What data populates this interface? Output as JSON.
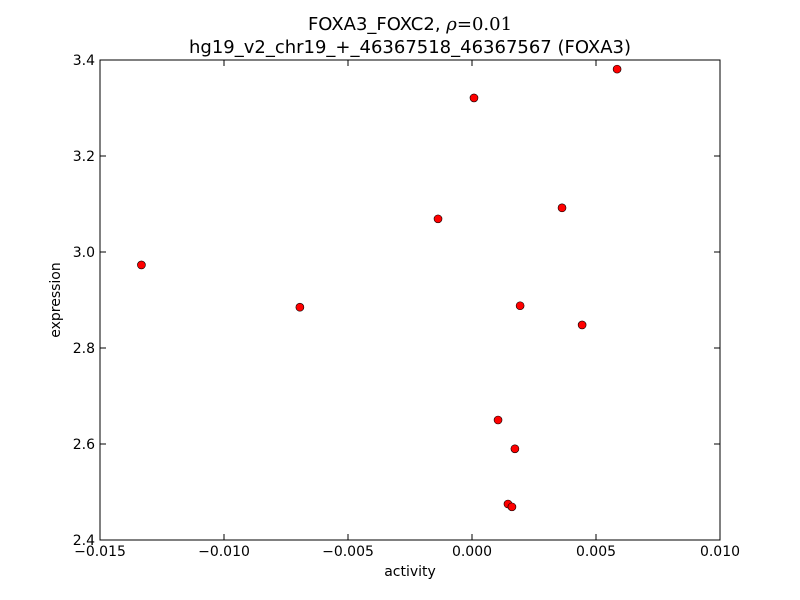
{
  "chart_data": {
    "type": "scatter",
    "title_prefix": "FOXA3_FOXC2, ",
    "title_rho_symbol": "ρ",
    "title_rho_value": "=0.01",
    "subtitle": "hg19_v2_chr19_+_46367518_46367567 (FOXA3)",
    "xlabel": "activity",
    "ylabel": "expression",
    "xlim": [
      -0.015,
      0.01
    ],
    "ylim": [
      2.4,
      3.4
    ],
    "x_ticks": [
      -0.015,
      -0.01,
      -0.005,
      0.0,
      0.005,
      0.01
    ],
    "x_tick_labels": [
      "−0.015",
      "−0.010",
      "−0.005",
      "0.000",
      "0.005",
      "0.010"
    ],
    "y_ticks": [
      2.4,
      2.6,
      2.8,
      3.0,
      3.2,
      3.4
    ],
    "y_tick_labels": [
      "2.4",
      "2.6",
      "2.8",
      "3.0",
      "3.2",
      "3.4"
    ],
    "grid": false,
    "marker_color": "#ff0000",
    "marker_edge_color": "#000000",
    "points": [
      {
        "x": -0.01333,
        "y": 2.973
      },
      {
        "x": -0.00694,
        "y": 2.885
      },
      {
        "x": -0.00137,
        "y": 3.069
      },
      {
        "x": 8e-05,
        "y": 3.321
      },
      {
        "x": 0.00585,
        "y": 3.381
      },
      {
        "x": 0.00363,
        "y": 3.092
      },
      {
        "x": 0.00194,
        "y": 2.888
      },
      {
        "x": 0.00444,
        "y": 2.848
      },
      {
        "x": 0.00105,
        "y": 2.65
      },
      {
        "x": 0.00173,
        "y": 2.59
      },
      {
        "x": 0.00145,
        "y": 2.475
      },
      {
        "x": 0.00161,
        "y": 2.469
      }
    ]
  }
}
